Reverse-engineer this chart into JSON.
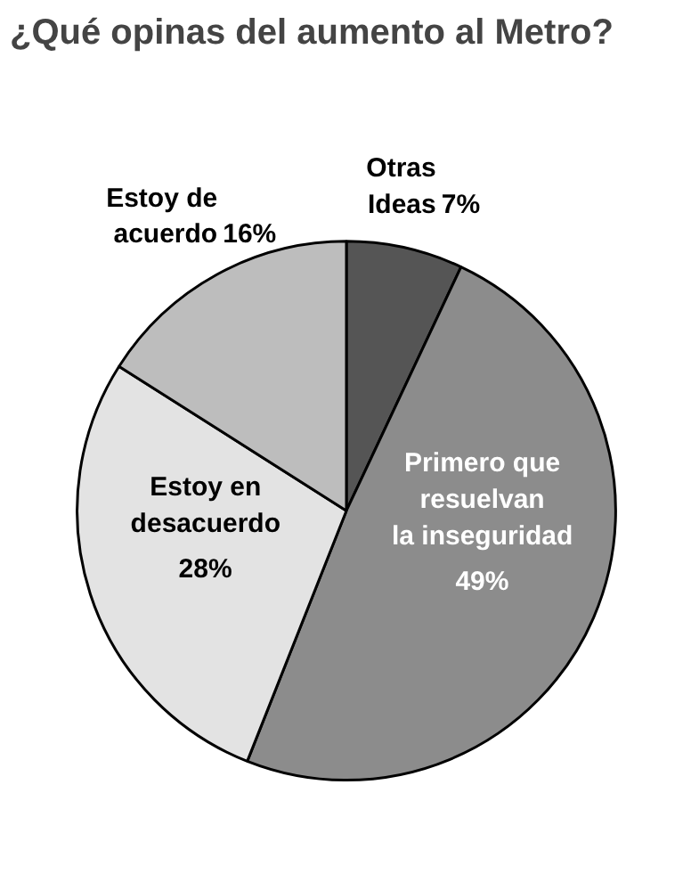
{
  "chart_data": {
    "type": "pie",
    "title": "¿Qué opinas del aumento al Metro?",
    "categories": [
      "Otras\nIdeas",
      "Primero que\nresuelvan\nla inseguridad",
      "Estoy en\ndesacuerdo",
      "Estoy de\nacuerdo"
    ],
    "values": [
      7,
      49,
      28,
      16
    ],
    "colors": [
      "#555555",
      "#8c8c8c",
      "#e3e3e3",
      "#bdbdbd"
    ],
    "value_labels": [
      "7%",
      "49%",
      "28%",
      "16%"
    ]
  }
}
